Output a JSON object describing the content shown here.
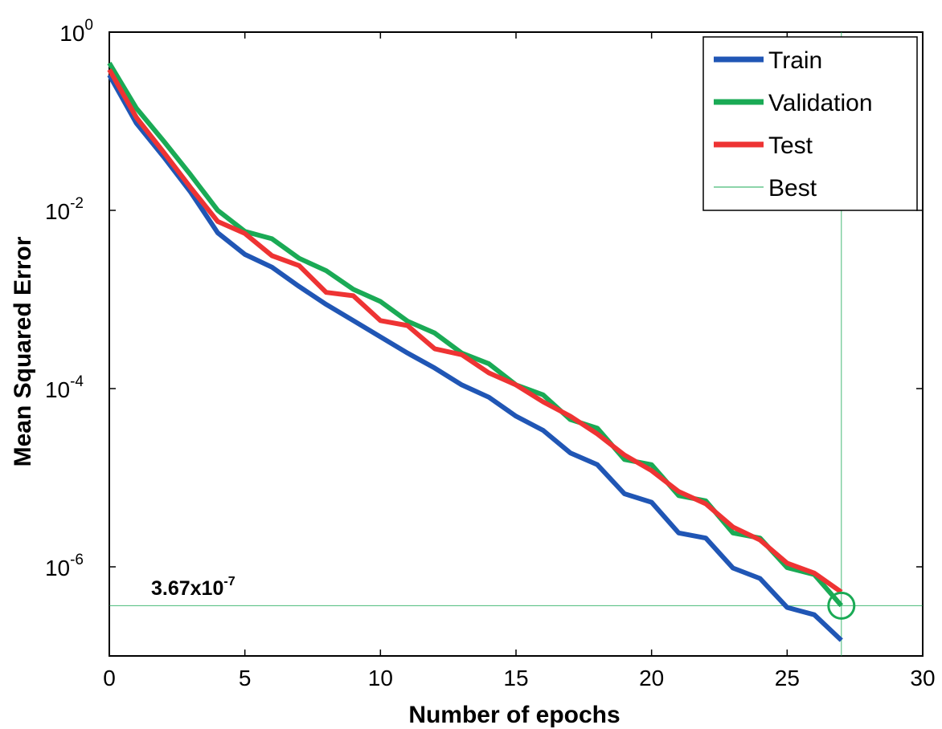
{
  "chart_data": {
    "type": "line",
    "title": "",
    "xlabel": "Number of epochs",
    "ylabel": "Mean Squared Error",
    "xscale": "linear",
    "yscale": "log",
    "xlim": [
      0,
      30
    ],
    "ylim": [
      1e-07,
      1
    ],
    "xticks": [
      0,
      5,
      10,
      15,
      20,
      25,
      30
    ],
    "yticks": [
      {
        "value": 1,
        "base": "10",
        "exp": "0"
      },
      {
        "value": 0.01,
        "base": "10",
        "exp": "-2"
      },
      {
        "value": 0.0001,
        "base": "10",
        "exp": "-4"
      },
      {
        "value": 1e-06,
        "base": "10",
        "exp": "-6"
      }
    ],
    "grid": false,
    "legend_position": "top-right",
    "x": [
      0,
      1,
      2,
      3,
      4,
      5,
      6,
      7,
      8,
      9,
      10,
      11,
      12,
      13,
      14,
      15,
      16,
      17,
      18,
      19,
      20,
      21,
      22,
      23,
      24,
      25,
      26,
      27
    ],
    "series": [
      {
        "name": "Train",
        "color": "#2056b5",
        "values": [
          0.33,
          0.095,
          0.04,
          0.016,
          0.0056,
          0.0032,
          0.0023,
          0.0014,
          0.00088,
          0.00058,
          0.00038,
          0.00025,
          0.00017,
          0.00011,
          8e-05,
          4.9e-05,
          3.4e-05,
          1.9e-05,
          1.4e-05,
          6.6e-06,
          5.3e-06,
          2.4e-06,
          2.1e-06,
          9.7e-07,
          7.4e-07,
          3.5e-07,
          2.9e-07,
          1.5e-07
        ]
      },
      {
        "name": "Validation",
        "color": "#1aaa55",
        "values": [
          0.45,
          0.14,
          0.06,
          0.025,
          0.01,
          0.0058,
          0.0048,
          0.0029,
          0.0021,
          0.0013,
          0.00095,
          0.00057,
          0.00042,
          0.00025,
          0.00019,
          0.00011,
          8.5e-05,
          4.5e-05,
          3.6e-05,
          1.6e-05,
          1.4e-05,
          6.3e-06,
          5.5e-06,
          2.4e-06,
          2.1e-06,
          9.8e-07,
          8.2e-07,
          3.67e-07
        ]
      },
      {
        "name": "Test",
        "color": "#ee3333",
        "values": [
          0.38,
          0.11,
          0.045,
          0.018,
          0.0075,
          0.0055,
          0.0031,
          0.0024,
          0.0012,
          0.0011,
          0.00058,
          0.00051,
          0.00028,
          0.00024,
          0.00015,
          0.00011,
          7.1e-05,
          4.9e-05,
          3.1e-05,
          1.8e-05,
          1.2e-05,
          7e-06,
          5.1e-06,
          2.8e-06,
          2e-06,
          1.1e-06,
          8.5e-07,
          5.2e-07
        ]
      }
    ],
    "legend": [
      {
        "label": "Train",
        "color": "#2056b5",
        "style": "thick"
      },
      {
        "label": "Validation",
        "color": "#1aaa55",
        "style": "thick"
      },
      {
        "label": "Test",
        "color": "#ee3333",
        "style": "thick"
      },
      {
        "label": "Best",
        "color": "#1aaa55",
        "style": "thin"
      }
    ],
    "best": {
      "epoch": 27,
      "value": 3.67e-07,
      "color": "#1aaa55",
      "label_mantissa": "3.67x10",
      "label_exp": "-7"
    }
  }
}
